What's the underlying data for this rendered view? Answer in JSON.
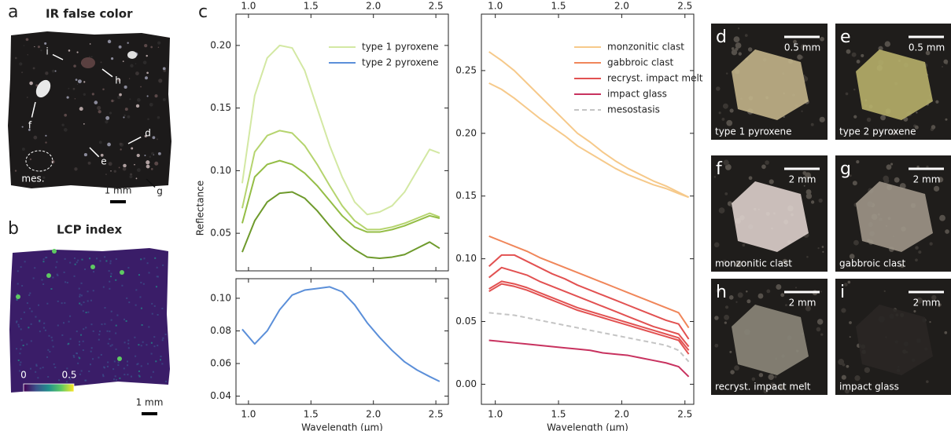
{
  "chart_data": [
    {
      "type": "line",
      "ylabel": "Reflectance",
      "legend": "upper right",
      "xtick_labels": "top",
      "xlim": [
        0.9,
        2.6
      ],
      "ylim": [
        0.02,
        0.225
      ],
      "xticks": [
        {
          "value": 1,
          "label": "1.0"
        },
        1.5,
        {
          "value": 2,
          "label": "2.0"
        },
        2.5
      ],
      "yticks": [
        0.05,
        {
          "value": 0.1,
          "label": "0.10"
        },
        0.15,
        {
          "value": 0.2,
          "label": "0.20"
        }
      ],
      "x": [
        0.95,
        1.05,
        1.15,
        1.25,
        1.35,
        1.45,
        1.55,
        1.65,
        1.75,
        1.85,
        1.95,
        2.05,
        2.15,
        2.25,
        2.35,
        2.45,
        2.53
      ],
      "series": [
        {
          "name": "type 1 pyroxene",
          "color": "#d3e8a3",
          "values": [
            0.09,
            0.16,
            0.19,
            0.2,
            0.198,
            0.18,
            0.15,
            0.12,
            0.095,
            0.075,
            0.065,
            0.067,
            0.072,
            0.083,
            0.1,
            0.117,
            0.114
          ]
        },
        {
          "color": "#b5d46e",
          "values": [
            0.07,
            0.115,
            0.128,
            0.132,
            0.13,
            0.12,
            0.105,
            0.088,
            0.072,
            0.06,
            0.053,
            0.053,
            0.055,
            0.058,
            0.062,
            0.066,
            0.063
          ]
        },
        {
          "color": "#94bd45",
          "values": [
            0.058,
            0.095,
            0.105,
            0.108,
            0.105,
            0.098,
            0.088,
            0.076,
            0.064,
            0.055,
            0.051,
            0.051,
            0.053,
            0.056,
            0.06,
            0.064,
            0.062
          ]
        },
        {
          "color": "#6e9a2c",
          "values": [
            0.035,
            0.06,
            0.075,
            0.082,
            0.083,
            0.078,
            0.068,
            0.056,
            0.045,
            0.037,
            0.031,
            0.03,
            0.031,
            0.033,
            0.038,
            0.043,
            0.038
          ]
        }
      ]
    },
    {
      "type": "line",
      "xlabel": "Wavelength (μm)",
      "xtick_labels": "bottom",
      "xlim": [
        0.9,
        2.6
      ],
      "ylim": [
        0.035,
        0.112
      ],
      "xticks": [
        {
          "value": 1,
          "label": "1.0"
        },
        1.5,
        {
          "value": 2,
          "label": "2.0"
        },
        2.5
      ],
      "yticks": [
        0.04,
        0.06,
        0.08,
        {
          "value": 0.1,
          "label": "0.10"
        }
      ],
      "x": [
        0.95,
        1.05,
        1.15,
        1.25,
        1.35,
        1.45,
        1.55,
        1.65,
        1.75,
        1.85,
        1.95,
        2.05,
        2.15,
        2.25,
        2.35,
        2.45,
        2.53
      ],
      "series": [
        {
          "name": "type 2 pyroxene",
          "color": "#5b8fd9",
          "values": [
            0.081,
            0.072,
            0.08,
            0.093,
            0.102,
            0.105,
            0.106,
            0.107,
            0.104,
            0.096,
            0.085,
            0.076,
            0.068,
            0.061,
            0.056,
            0.052,
            0.049
          ]
        }
      ]
    },
    {
      "type": "line",
      "xlabel": "Wavelength (μm)",
      "legend": "upper right",
      "xtick_labels": "both",
      "xlim": [
        0.89,
        2.57
      ],
      "ylim": [
        -0.016,
        0.295
      ],
      "xticks": [
        {
          "value": 1,
          "label": "1.0"
        },
        1.5,
        {
          "value": 2,
          "label": "2.0"
        },
        2.5
      ],
      "yticks": [
        {
          "value": 0,
          "label": "0.00"
        },
        0.05,
        {
          "value": 0.1,
          "label": "0.10"
        },
        0.15,
        {
          "value": 0.2,
          "label": "0.20"
        },
        0.25
      ],
      "x": [
        0.95,
        1.05,
        1.15,
        1.25,
        1.35,
        1.45,
        1.55,
        1.65,
        1.75,
        1.85,
        1.95,
        2.05,
        2.15,
        2.25,
        2.35,
        2.45,
        2.53
      ],
      "series": [
        {
          "name": "monzonitic clast",
          "color": "#f6c98a",
          "values": [
            0.265,
            0.258,
            0.25,
            0.24,
            0.23,
            0.22,
            0.21,
            0.2,
            0.193,
            0.185,
            0.178,
            0.172,
            0.167,
            0.162,
            0.158,
            0.153,
            0.149
          ]
        },
        {
          "color": "#f6c98a",
          "values": [
            0.24,
            0.235,
            0.228,
            0.22,
            0.212,
            0.205,
            0.198,
            0.19,
            0.184,
            0.178,
            0.172,
            0.167,
            0.163,
            0.159,
            0.156,
            0.152,
            0.149
          ]
        },
        {
          "name": "gabbroic clast",
          "color": "#f0865a",
          "values": [
            0.118,
            0.114,
            0.11,
            0.106,
            0.101,
            0.097,
            0.093,
            0.089,
            0.085,
            0.081,
            0.077,
            0.073,
            0.069,
            0.065,
            0.061,
            0.057,
            0.045
          ]
        },
        {
          "name": "recryst. impact melt",
          "color": "#e25151",
          "values": [
            0.094,
            0.103,
            0.103,
            0.098,
            0.093,
            0.088,
            0.084,
            0.079,
            0.075,
            0.071,
            0.067,
            0.063,
            0.059,
            0.055,
            0.051,
            0.048,
            0.036
          ]
        },
        {
          "color": "#e25151",
          "values": [
            0.085,
            0.093,
            0.09,
            0.087,
            0.082,
            0.078,
            0.074,
            0.07,
            0.066,
            0.062,
            0.058,
            0.054,
            0.05,
            0.046,
            0.043,
            0.04,
            0.03
          ]
        },
        {
          "color": "#e25151",
          "values": [
            0.076,
            0.082,
            0.08,
            0.077,
            0.073,
            0.069,
            0.065,
            0.061,
            0.058,
            0.055,
            0.052,
            0.049,
            0.046,
            0.043,
            0.04,
            0.037,
            0.027
          ]
        },
        {
          "color": "#e25151",
          "values": [
            0.074,
            0.08,
            0.078,
            0.075,
            0.071,
            0.067,
            0.063,
            0.059,
            0.056,
            0.053,
            0.05,
            0.047,
            0.044,
            0.041,
            0.038,
            0.035,
            0.024
          ]
        },
        {
          "name": "impact glass",
          "color": "#c8325f",
          "values": [
            0.035,
            0.034,
            0.033,
            0.032,
            0.031,
            0.03,
            0.029,
            0.028,
            0.027,
            0.025,
            0.024,
            0.023,
            0.021,
            0.019,
            0.017,
            0.014,
            0.006
          ]
        },
        {
          "name": "mesostasis",
          "color": "#c4c4c4",
          "dash": true,
          "values": [
            0.057,
            0.056,
            0.055,
            0.053,
            0.051,
            0.049,
            0.047,
            0.045,
            0.043,
            0.041,
            0.039,
            0.037,
            0.035,
            0.033,
            0.031,
            0.027,
            0.018
          ]
        }
      ]
    }
  ],
  "panels": [
    {
      "letter": "a",
      "title": "IR false color",
      "labels": [
        "i",
        "h",
        "f",
        "d",
        "e",
        "mes.",
        "g"
      ],
      "scale": "1 mm"
    },
    {
      "letter": "b",
      "title": "LCP index",
      "colorbar": {
        "min": 0,
        "max": 0.5
      },
      "scale": "1 mm"
    },
    {
      "letter": "c"
    },
    {
      "letter": "d",
      "scale": "0.5 mm",
      "caption": "type 1 pyroxene"
    },
    {
      "letter": "e",
      "scale": "0.5 mm",
      "caption": "type 2 pyroxene"
    },
    {
      "letter": "f",
      "scale": "2 mm",
      "caption": "monzonitic clast"
    },
    {
      "letter": "g",
      "scale": "2 mm",
      "caption": "gabbroic clast"
    },
    {
      "letter": "h",
      "scale": "2 mm",
      "caption": "recryst. impact melt"
    },
    {
      "letter": "i",
      "scale": "2 mm",
      "caption": "impact glass"
    }
  ]
}
